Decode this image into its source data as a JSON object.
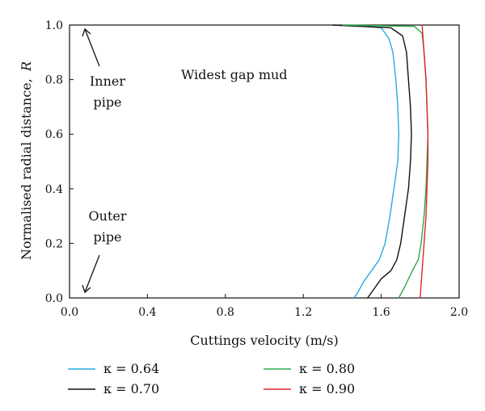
{
  "chart_data": {
    "type": "line",
    "title": "",
    "xlabel": "Cuttings velocity (m/s)",
    "ylabel": "Normalised radial distance,",
    "ylabel_symbol": "R",
    "xlim": [
      0.0,
      2.0
    ],
    "ylim": [
      0.0,
      1.0
    ],
    "x_ticks": [
      "0.0",
      "0.4",
      "0.8",
      "1.2",
      "1.6",
      "2.0"
    ],
    "y_ticks": [
      "0.0",
      "0.2",
      "0.4",
      "0.6",
      "0.8",
      "1.0"
    ],
    "grid": false,
    "legend_position": "bottom",
    "annotations": [
      {
        "id": "inner",
        "lines": [
          "Inner",
          "pipe"
        ]
      },
      {
        "id": "outer",
        "lines": [
          "Outer",
          "pipe"
        ]
      },
      {
        "id": "mud",
        "lines": [
          "Widest gap mud"
        ]
      }
    ],
    "series": [
      {
        "name": "κ = 0.64",
        "color": "#29a9e0",
        "points": [
          [
            1.46,
            0.0
          ],
          [
            1.48,
            0.02
          ],
          [
            1.51,
            0.06
          ],
          [
            1.55,
            0.1
          ],
          [
            1.59,
            0.14
          ],
          [
            1.62,
            0.2
          ],
          [
            1.645,
            0.3
          ],
          [
            1.665,
            0.4
          ],
          [
            1.685,
            0.5
          ],
          [
            1.69,
            0.6
          ],
          [
            1.685,
            0.7
          ],
          [
            1.675,
            0.8
          ],
          [
            1.66,
            0.9
          ],
          [
            1.64,
            0.95
          ],
          [
            1.6,
            0.99
          ],
          [
            1.45,
            1.0
          ]
        ]
      },
      {
        "name": "κ = 0.70",
        "color": "#111111",
        "points": [
          [
            1.53,
            0.0
          ],
          [
            1.56,
            0.03
          ],
          [
            1.6,
            0.07
          ],
          [
            1.65,
            0.1
          ],
          [
            1.68,
            0.14
          ],
          [
            1.7,
            0.2
          ],
          [
            1.72,
            0.3
          ],
          [
            1.74,
            0.4
          ],
          [
            1.75,
            0.5
          ],
          [
            1.755,
            0.6
          ],
          [
            1.75,
            0.7
          ],
          [
            1.74,
            0.8
          ],
          [
            1.73,
            0.9
          ],
          [
            1.71,
            0.96
          ],
          [
            1.65,
            0.99
          ],
          [
            1.35,
            1.0
          ]
        ]
      },
      {
        "name": "κ = 0.80",
        "color": "#2ea84a",
        "points": [
          [
            1.69,
            0.0
          ],
          [
            1.72,
            0.04
          ],
          [
            1.76,
            0.1
          ],
          [
            1.79,
            0.14
          ],
          [
            1.805,
            0.2
          ],
          [
            1.82,
            0.3
          ],
          [
            1.83,
            0.4
          ],
          [
            1.835,
            0.5
          ],
          [
            1.84,
            0.6
          ],
          [
            1.835,
            0.7
          ],
          [
            1.83,
            0.8
          ],
          [
            1.82,
            0.9
          ],
          [
            1.81,
            0.97
          ],
          [
            1.77,
            0.995
          ],
          [
            1.4,
            1.0
          ]
        ]
      },
      {
        "name": "κ = 0.90",
        "color": "#e0262a",
        "points": [
          [
            1.8,
            0.0
          ],
          [
            1.81,
            0.1
          ],
          [
            1.82,
            0.2
          ],
          [
            1.83,
            0.3
          ],
          [
            1.835,
            0.4
          ],
          [
            1.84,
            0.5
          ],
          [
            1.84,
            0.6
          ],
          [
            1.835,
            0.7
          ],
          [
            1.83,
            0.8
          ],
          [
            1.82,
            0.9
          ],
          [
            1.81,
            1.0
          ]
        ]
      }
    ]
  }
}
